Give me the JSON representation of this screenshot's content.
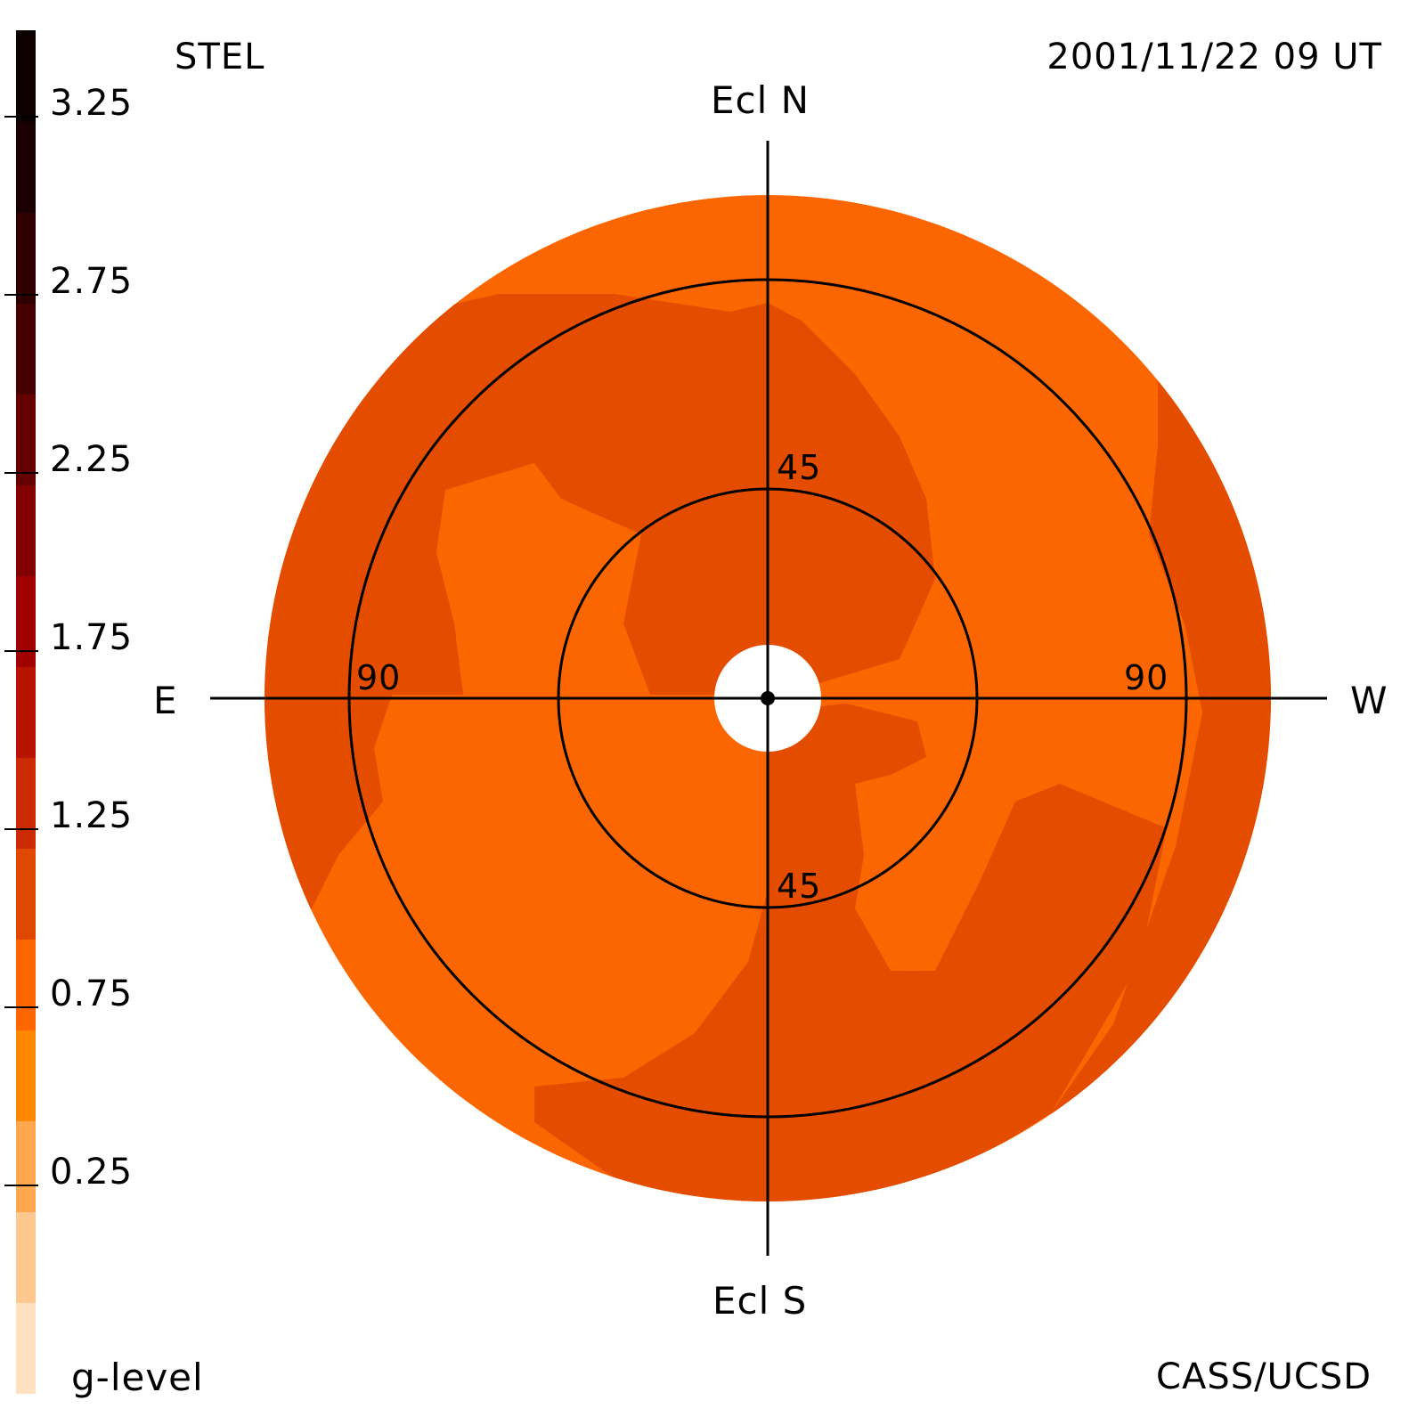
{
  "header": {
    "left_label": "STEL",
    "timestamp": "2001/11/22 09 UT"
  },
  "footer": {
    "colorbar_title": "g-level",
    "credit": "CASS/UCSD"
  },
  "directions": {
    "north": "Ecl N",
    "south": "Ecl S",
    "east": "E",
    "west": "W"
  },
  "rings": {
    "inner_north": "45",
    "inner_south": "45",
    "outer_east": "90",
    "outer_west": "90"
  },
  "colorbar": {
    "tick_labels": [
      "3.25",
      "2.75",
      "2.25",
      "1.75",
      "1.25",
      "0.75",
      "0.25"
    ],
    "colors": [
      "#ffe0c0",
      "#ffc890",
      "#ffa850",
      "#ff8800",
      "#ff6600",
      "#e04800",
      "#cc2a00",
      "#b81400",
      "#a00000",
      "#820000",
      "#640000",
      "#460000",
      "#2e0000",
      "#1a0000",
      "#0c0000"
    ]
  },
  "map_colors": {
    "light": "#fc6600",
    "dark": "#e44c00",
    "center": "#ffffff",
    "lines": "#000000"
  }
}
